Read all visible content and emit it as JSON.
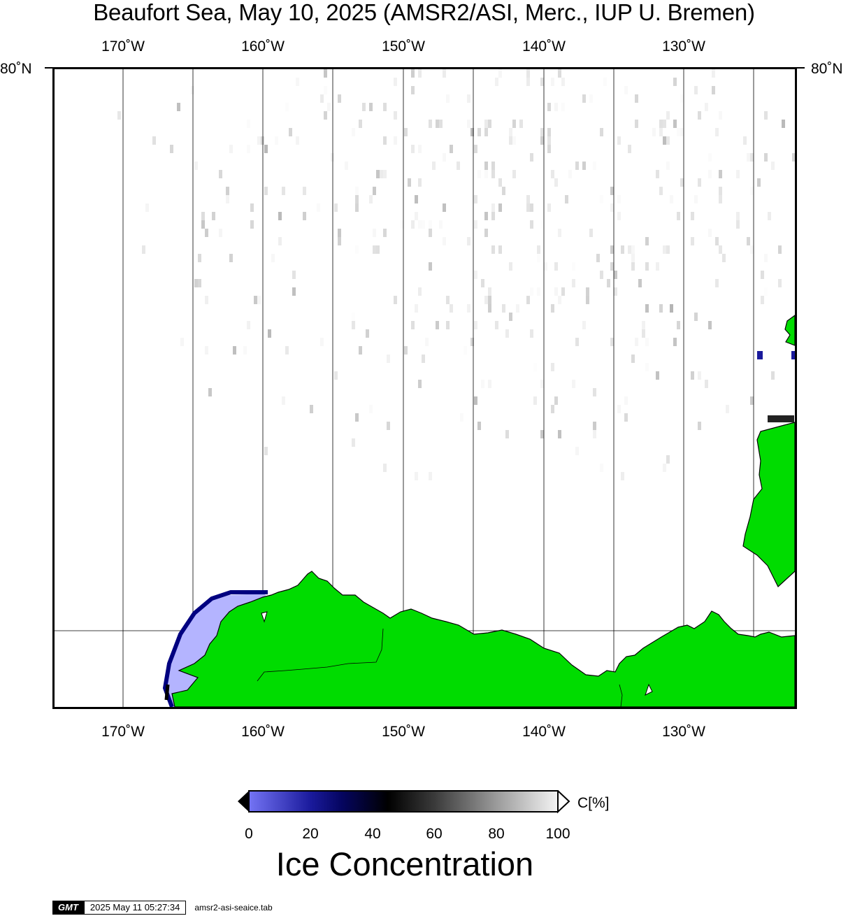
{
  "title": "Beaufort Sea, May 10, 2025 (AMSR2/ASI, Merc., IUP U. Bremen)",
  "longitude_labels": [
    "170˚W",
    "160˚W",
    "150˚W",
    "140˚W",
    "130˚W"
  ],
  "latitude_label": "80˚N",
  "colorbar": {
    "title": "Ice Concentration",
    "unit": "C[%]",
    "ticks": [
      "0",
      "20",
      "40",
      "60",
      "80",
      "100"
    ],
    "stops": [
      {
        "value": 0,
        "color": "#7474f4"
      },
      {
        "value": 20,
        "color": "#1a1a9c"
      },
      {
        "value": 30,
        "color": "#050560"
      },
      {
        "value": 45,
        "color": "#000000"
      },
      {
        "value": 60,
        "color": "#3a3a3a"
      },
      {
        "value": 80,
        "color": "#9a9a9a"
      },
      {
        "value": 100,
        "color": "#f4f4f4"
      }
    ]
  },
  "colors": {
    "land": "#00dc00",
    "ocean": "#ffffff",
    "low_ice": "#b4b4ff",
    "edge_ice": "#000080"
  },
  "footer": {
    "logo": "GMT",
    "timestamp": "2025 May 11 05:27:34",
    "source_file": "amsr2-asi-seaice.tab"
  }
}
